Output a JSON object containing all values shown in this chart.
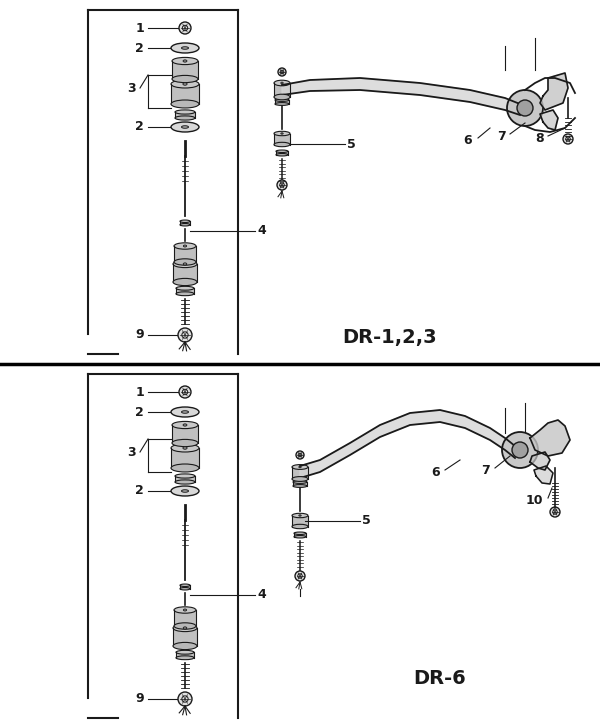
{
  "background_color": "#ffffff",
  "line_color": "#1a1a1a",
  "gray_fill": "#cccccc",
  "panel1_label": "DR-1,2,3",
  "panel2_label": "DR-6",
  "fig_width": 6.0,
  "fig_height": 7.28,
  "dpi": 100
}
